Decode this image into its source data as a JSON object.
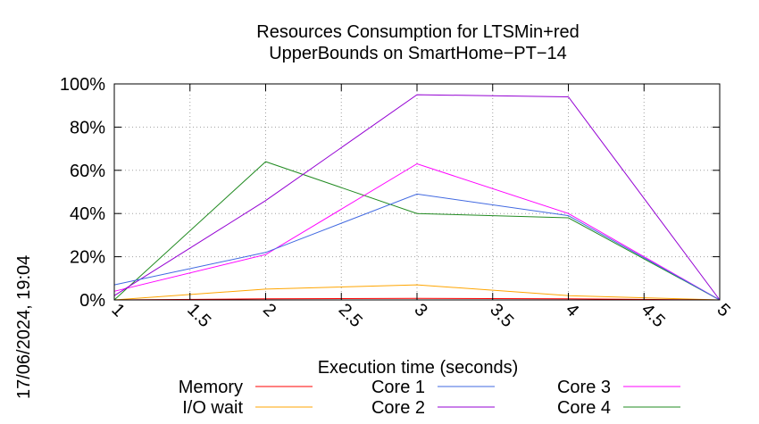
{
  "timestamp": "17/06/2024, 19:04",
  "chart_data": {
    "type": "line",
    "title": [
      "Resources Consumption for LTSMin+red",
      "UpperBounds on SmartHome−PT−14"
    ],
    "xlabel": "Execution time (seconds)",
    "ylabel": "",
    "xlim": [
      1,
      5
    ],
    "ylim": [
      0,
      100
    ],
    "x_ticks": [
      "1",
      "1.5",
      "2",
      "2.5",
      "3",
      "3.5",
      "4",
      "4.5",
      "5"
    ],
    "y_ticks": [
      "0%",
      "20%",
      "40%",
      "60%",
      "80%",
      "100%"
    ],
    "grid": true,
    "legend_position": "bottom",
    "series": [
      {
        "name": "Memory",
        "color": "#ff0000",
        "points": [
          [
            1,
            0
          ],
          [
            2,
            0.5
          ],
          [
            3,
            0.7
          ],
          [
            4,
            0.5
          ],
          [
            5,
            0
          ]
        ]
      },
      {
        "name": "I/O wait",
        "color": "#ffa500",
        "points": [
          [
            1,
            0
          ],
          [
            2,
            5
          ],
          [
            3,
            7
          ],
          [
            4,
            2
          ],
          [
            5,
            0
          ]
        ]
      },
      {
        "name": "Core 1",
        "color": "#4169e1",
        "points": [
          [
            1,
            7
          ],
          [
            2,
            22
          ],
          [
            3,
            49
          ],
          [
            4,
            39
          ],
          [
            5,
            0
          ]
        ]
      },
      {
        "name": "Core 2",
        "color": "#9400d3",
        "points": [
          [
            1,
            2
          ],
          [
            2,
            46
          ],
          [
            3,
            95
          ],
          [
            4,
            94
          ],
          [
            5,
            0
          ]
        ]
      },
      {
        "name": "Core 3",
        "color": "#ff00ff",
        "points": [
          [
            1,
            4
          ],
          [
            2,
            21
          ],
          [
            3,
            63
          ],
          [
            4,
            40
          ],
          [
            5,
            0
          ]
        ]
      },
      {
        "name": "Core 4",
        "color": "#228b22",
        "points": [
          [
            1,
            0
          ],
          [
            2,
            64
          ],
          [
            3,
            40
          ],
          [
            4,
            38
          ],
          [
            5,
            0
          ]
        ]
      }
    ]
  }
}
